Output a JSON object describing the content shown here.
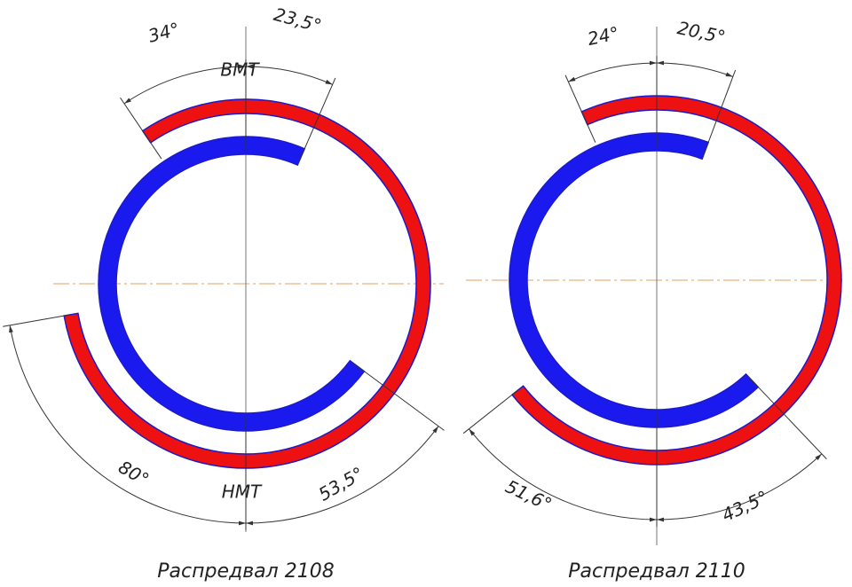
{
  "left": {
    "angle_top_left": "34°",
    "angle_top_right": "23,5°",
    "tdc": "ВМТ",
    "angle_bottom_left": "80°",
    "bdc": "НМТ",
    "angle_bottom_right": "53,5°",
    "caption": "Распредвал 2108"
  },
  "right": {
    "angle_top_left": "24°",
    "angle_top_right": "20,5°",
    "angle_bottom_left": "51,6°",
    "angle_bottom_right": "43,5°",
    "caption": "Распредвал 2110"
  }
}
